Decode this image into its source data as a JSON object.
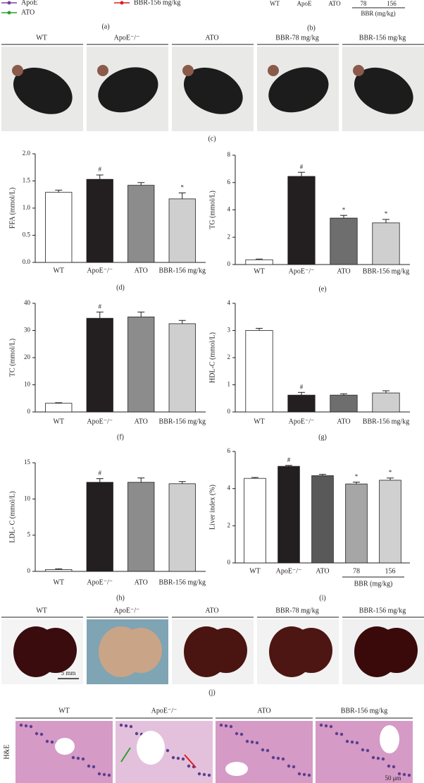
{
  "top": {
    "legend": [
      "ApoE",
      "ATO",
      "BBR-156 mg/kg"
    ],
    "panel_a": "(a)",
    "categories_b": [
      "WT",
      "ApoE",
      "ATO",
      "78",
      "156"
    ],
    "group_b": "BBR (mg/kg)",
    "panel_b": "(b)"
  },
  "photos_c": {
    "labels": [
      "WT",
      "ApoE⁻/⁻",
      "ATO",
      "BBR-78 mg/kg",
      "BBR-156 mg/kg"
    ],
    "panel": "(c)"
  },
  "chart_data": [
    {
      "type": "bar",
      "ylabel": "FFA (mmol/L)",
      "panel": "(d)",
      "categories": [
        "WT",
        "ApoE⁻/⁻",
        "ATO",
        "BBR-156 mg/kg"
      ],
      "values": [
        1.29,
        1.53,
        1.42,
        1.17
      ],
      "errors": [
        0.04,
        0.08,
        0.05,
        0.11
      ],
      "annotations": [
        null,
        "#",
        null,
        "*"
      ],
      "colors": [
        "#ffffff",
        "#231f20",
        "#8c8c8c",
        "#cfcfcf"
      ],
      "ylim": [
        0,
        2
      ],
      "yticks": [
        {
          "value": 0,
          "label": "0.0"
        },
        {
          "value": 0.5,
          "label": "0.5"
        },
        {
          "value": 1,
          "label": "1.0"
        },
        {
          "value": 1.5,
          "label": "1.5"
        },
        {
          "value": 2,
          "label": "2.0"
        }
      ]
    },
    {
      "type": "bar",
      "ylabel": "TG (mmol/L)",
      "panel": "(e)",
      "categories": [
        "WT",
        "ApoE⁻/⁻",
        "ATO",
        "BBR-156 mg/kg"
      ],
      "values": [
        0.35,
        6.45,
        3.4,
        3.05
      ],
      "errors": [
        0.05,
        0.3,
        0.2,
        0.25
      ],
      "annotations": [
        null,
        "#",
        "*",
        "*"
      ],
      "colors": [
        "#ffffff",
        "#231f20",
        "#6e6e6e",
        "#cfcfcf"
      ],
      "ylim": [
        0,
        8
      ],
      "yticks": [
        0,
        2,
        4,
        6,
        8
      ]
    },
    {
      "type": "bar",
      "ylabel": "TC (mmol/L)",
      "panel": "(f)",
      "categories": [
        "WT",
        "ApoE⁻/⁻",
        "ATO",
        "BBR-156 mg/kg"
      ],
      "values": [
        3.2,
        34.5,
        35,
        32.5
      ],
      "errors": [
        0.2,
        2.3,
        1.8,
        1.2
      ],
      "annotations": [
        null,
        "#",
        null,
        null
      ],
      "colors": [
        "#ffffff",
        "#231f20",
        "#8c8c8c",
        "#cfcfcf"
      ],
      "ylim": [
        0,
        40
      ],
      "yticks": [
        0,
        10,
        20,
        30,
        40
      ]
    },
    {
      "type": "bar",
      "ylabel": "HDL-C (mmol/L)",
      "panel": "(g)",
      "categories": [
        "WT",
        "ApoE⁻/⁻",
        "ATO",
        "BBR-156 mg/kg"
      ],
      "values": [
        3.0,
        0.62,
        0.62,
        0.7
      ],
      "errors": [
        0.08,
        0.1,
        0.05,
        0.08
      ],
      "annotations": [
        null,
        "#",
        null,
        null
      ],
      "colors": [
        "#ffffff",
        "#231f20",
        "#6e6e6e",
        "#cfcfcf"
      ],
      "ylim": [
        0,
        4
      ],
      "yticks": [
        0,
        1,
        2,
        3,
        4
      ]
    },
    {
      "type": "bar",
      "ylabel": "LDL- C (mmol/L)",
      "panel": "(h)",
      "categories": [
        "WT",
        "ApoE⁻/⁻",
        "ATO",
        "BBR-156 mg/kg"
      ],
      "values": [
        0.25,
        12.3,
        12.3,
        12.1
      ],
      "errors": [
        0.1,
        0.5,
        0.6,
        0.3
      ],
      "annotations": [
        null,
        "#",
        null,
        null
      ],
      "colors": [
        "#ffffff",
        "#231f20",
        "#8c8c8c",
        "#cfcfcf"
      ],
      "ylim": [
        0,
        15
      ],
      "yticks": [
        0,
        5,
        10,
        15
      ]
    },
    {
      "type": "bar",
      "ylabel": "Liver index (%)",
      "panel": "(i)",
      "categories": [
        "WT",
        "ApoE⁻/⁻",
        "ATO",
        "78",
        "156"
      ],
      "group_label": "BBR (mg/kg)",
      "values": [
        4.55,
        5.2,
        4.7,
        4.25,
        4.45
      ],
      "errors": [
        0.05,
        0.05,
        0.07,
        0.1,
        0.12
      ],
      "annotations": [
        null,
        "#",
        null,
        "*",
        "*"
      ],
      "colors": [
        "#ffffff",
        "#231f20",
        "#595959",
        "#a6a6a6",
        "#d0d0d0"
      ],
      "ylim": [
        0,
        6
      ],
      "yticks": [
        0,
        2,
        4,
        6
      ]
    }
  ],
  "photos_j": {
    "labels": [
      "WT",
      "ApoE⁻/⁻",
      "ATO",
      "BBR-78 mg/kg",
      "BBR-156 mg/kg"
    ],
    "scale": "5 mm",
    "panel": "(j)"
  },
  "histology": {
    "stain": "H&E",
    "labels": [
      "WT",
      "ApoE⁻/⁻",
      "ATO",
      "BBR-156 mg/kg"
    ],
    "scale": "50 μm"
  }
}
